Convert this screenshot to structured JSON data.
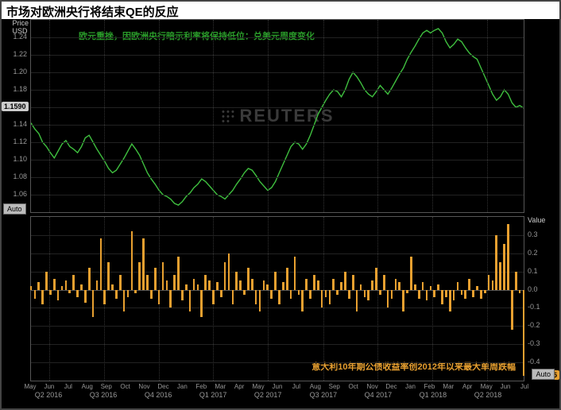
{
  "title": "市场对欧洲央行将结束QE的反应",
  "watermark": "REUTERS",
  "auto_label": "Auto",
  "top_chart": {
    "type": "line",
    "subtitle": "欧元重挫，因欧洲央行暗示利率将保持低位：兑美元周度变化",
    "y_unit": "Price\nUSD",
    "ylim": [
      1.04,
      1.26
    ],
    "yticks": [
      1.06,
      1.08,
      1.1,
      1.12,
      1.14,
      1.16,
      1.18,
      1.2,
      1.22,
      1.24
    ],
    "marker_value": "1.1590",
    "line_color": "#3fbf3f",
    "grid_color": "#222222",
    "background_color": "#000000",
    "data": [
      1.142,
      1.135,
      1.13,
      1.12,
      1.115,
      1.108,
      1.102,
      1.11,
      1.118,
      1.122,
      1.115,
      1.112,
      1.108,
      1.115,
      1.125,
      1.128,
      1.12,
      1.112,
      1.105,
      1.098,
      1.09,
      1.085,
      1.088,
      1.095,
      1.102,
      1.11,
      1.118,
      1.112,
      1.105,
      1.095,
      1.085,
      1.078,
      1.072,
      1.065,
      1.06,
      1.058,
      1.055,
      1.05,
      1.048,
      1.052,
      1.058,
      1.062,
      1.068,
      1.072,
      1.078,
      1.075,
      1.07,
      1.065,
      1.06,
      1.058,
      1.055,
      1.06,
      1.065,
      1.072,
      1.078,
      1.085,
      1.09,
      1.088,
      1.082,
      1.075,
      1.07,
      1.065,
      1.068,
      1.075,
      1.085,
      1.095,
      1.105,
      1.115,
      1.12,
      1.118,
      1.112,
      1.118,
      1.128,
      1.14,
      1.152,
      1.16,
      1.168,
      1.175,
      1.18,
      1.178,
      1.172,
      1.18,
      1.192,
      1.2,
      1.195,
      1.188,
      1.18,
      1.175,
      1.172,
      1.178,
      1.185,
      1.18,
      1.175,
      1.182,
      1.19,
      1.198,
      1.205,
      1.215,
      1.223,
      1.23,
      1.238,
      1.245,
      1.248,
      1.245,
      1.248,
      1.25,
      1.245,
      1.235,
      1.228,
      1.232,
      1.238,
      1.235,
      1.228,
      1.222,
      1.218,
      1.215,
      1.205,
      1.195,
      1.185,
      1.175,
      1.168,
      1.172,
      1.18,
      1.175,
      1.165,
      1.16,
      1.162,
      1.159
    ]
  },
  "bottom_chart": {
    "type": "bar",
    "subtitle": "意大利10年期公债收益率创2012年以来最大单周跌幅",
    "y_unit": "Value",
    "ylim": [
      -0.5,
      0.4
    ],
    "yticks": [
      -0.4,
      -0.3,
      -0.2,
      -0.1,
      0.0,
      0.1,
      0.2,
      0.3
    ],
    "marker_value": "-0.475",
    "bar_color": "#e8a030",
    "grid_color": "#222222",
    "background_color": "#000000",
    "data": [
      0.02,
      -0.05,
      0.04,
      -0.08,
      0.1,
      -0.03,
      0.06,
      -0.06,
      0.02,
      0.05,
      -0.02,
      0.08,
      -0.04,
      0.03,
      -0.07,
      0.12,
      -0.15,
      0.05,
      0.28,
      -0.08,
      0.15,
      0.03,
      -0.05,
      0.08,
      -0.12,
      -0.04,
      0.32,
      -0.02,
      0.15,
      0.28,
      0.08,
      -0.05,
      0.12,
      -0.08,
      0.15,
      0.05,
      -0.1,
      0.08,
      0.18,
      -0.06,
      0.03,
      -0.12,
      0.06,
      0.03,
      -0.15,
      0.08,
      0.05,
      -0.08,
      0.04,
      -0.04,
      0.15,
      0.2,
      -0.08,
      0.1,
      0.05,
      -0.03,
      0.12,
      0.06,
      -0.08,
      -0.12,
      0.05,
      0.03,
      -0.05,
      0.1,
      -0.08,
      0.04,
      0.12,
      -0.05,
      0.18,
      -0.03,
      -0.12,
      0.06,
      -0.05,
      0.08,
      0.05,
      -0.1,
      -0.04,
      -0.08,
      0.06,
      -0.03,
      0.04,
      0.1,
      -0.05,
      0.08,
      -0.12,
      0.03,
      -0.04,
      -0.06,
      0.05,
      0.12,
      -0.03,
      0.08,
      -0.1,
      -0.05,
      0.06,
      0.04,
      -0.12,
      -0.02,
      0.18,
      0.03,
      -0.05,
      0.04,
      -0.06,
      0.02,
      -0.04,
      0.03,
      -0.08,
      -0.04,
      -0.12,
      -0.06,
      0.04,
      -0.03,
      -0.05,
      0.06,
      -0.04,
      0.02,
      -0.05,
      -0.02,
      0.08,
      0.05,
      0.3,
      0.15,
      0.25,
      0.36,
      -0.22,
      0.1,
      -0.02,
      -0.475
    ]
  },
  "x_axis": {
    "month_ticks": [
      "May",
      "Jun",
      "Jul",
      "Aug",
      "Sep",
      "Oct",
      "Nov",
      "Dec",
      "Jan",
      "Feb",
      "Mar",
      "Apr",
      "May",
      "Jun",
      "Jul",
      "Aug",
      "Sep",
      "Oct",
      "Nov",
      "Dec",
      "Jan",
      "Feb",
      "Mar",
      "Apr",
      "May",
      "Jun",
      "Jul"
    ],
    "quarters": [
      {
        "label": "Q2 2016",
        "pos": 0.037
      },
      {
        "label": "Q3 2016",
        "pos": 0.148
      },
      {
        "label": "Q4 2016",
        "pos": 0.259
      },
      {
        "label": "Q1 2017",
        "pos": 0.37
      },
      {
        "label": "Q2 2017",
        "pos": 0.481
      },
      {
        "label": "Q3 2017",
        "pos": 0.593
      },
      {
        "label": "Q4 2017",
        "pos": 0.704
      },
      {
        "label": "Q1 2018",
        "pos": 0.815
      },
      {
        "label": "Q2 2018",
        "pos": 0.926
      }
    ]
  }
}
